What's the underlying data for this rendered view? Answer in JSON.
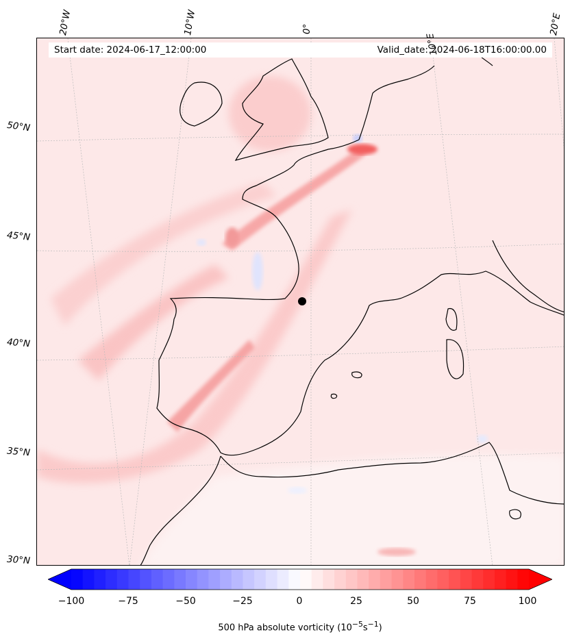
{
  "header": {
    "start_date": "Start date: 2024-06-17_12:00:00",
    "valid_date": "Valid_date: 2024-06-18T16:00:00.00"
  },
  "longitude_labels": [
    "20°W",
    "10°W",
    "0°",
    "10°E",
    "20°E"
  ],
  "latitude_labels": [
    "50°N",
    "45°N",
    "40°N",
    "35°N",
    "30°N"
  ],
  "colorbar": {
    "ticks": [
      "−100",
      "−75",
      "−50",
      "−25",
      "0",
      "25",
      "50",
      "75",
      "100"
    ],
    "min": -100,
    "max": 100,
    "step": 5,
    "low_color": "#0000ff",
    "mid_color": "#ffffff",
    "high_color": "#ff0000",
    "label_text": "500 hPa absolute vorticity (10",
    "label_exp1": "−5",
    "label_mid": "s",
    "label_exp2": "−1",
    "label_close": ")"
  },
  "colors": {
    "background_field": "#fdeaea",
    "coastline": "#000000",
    "gridline": "#bbbbbb"
  }
}
